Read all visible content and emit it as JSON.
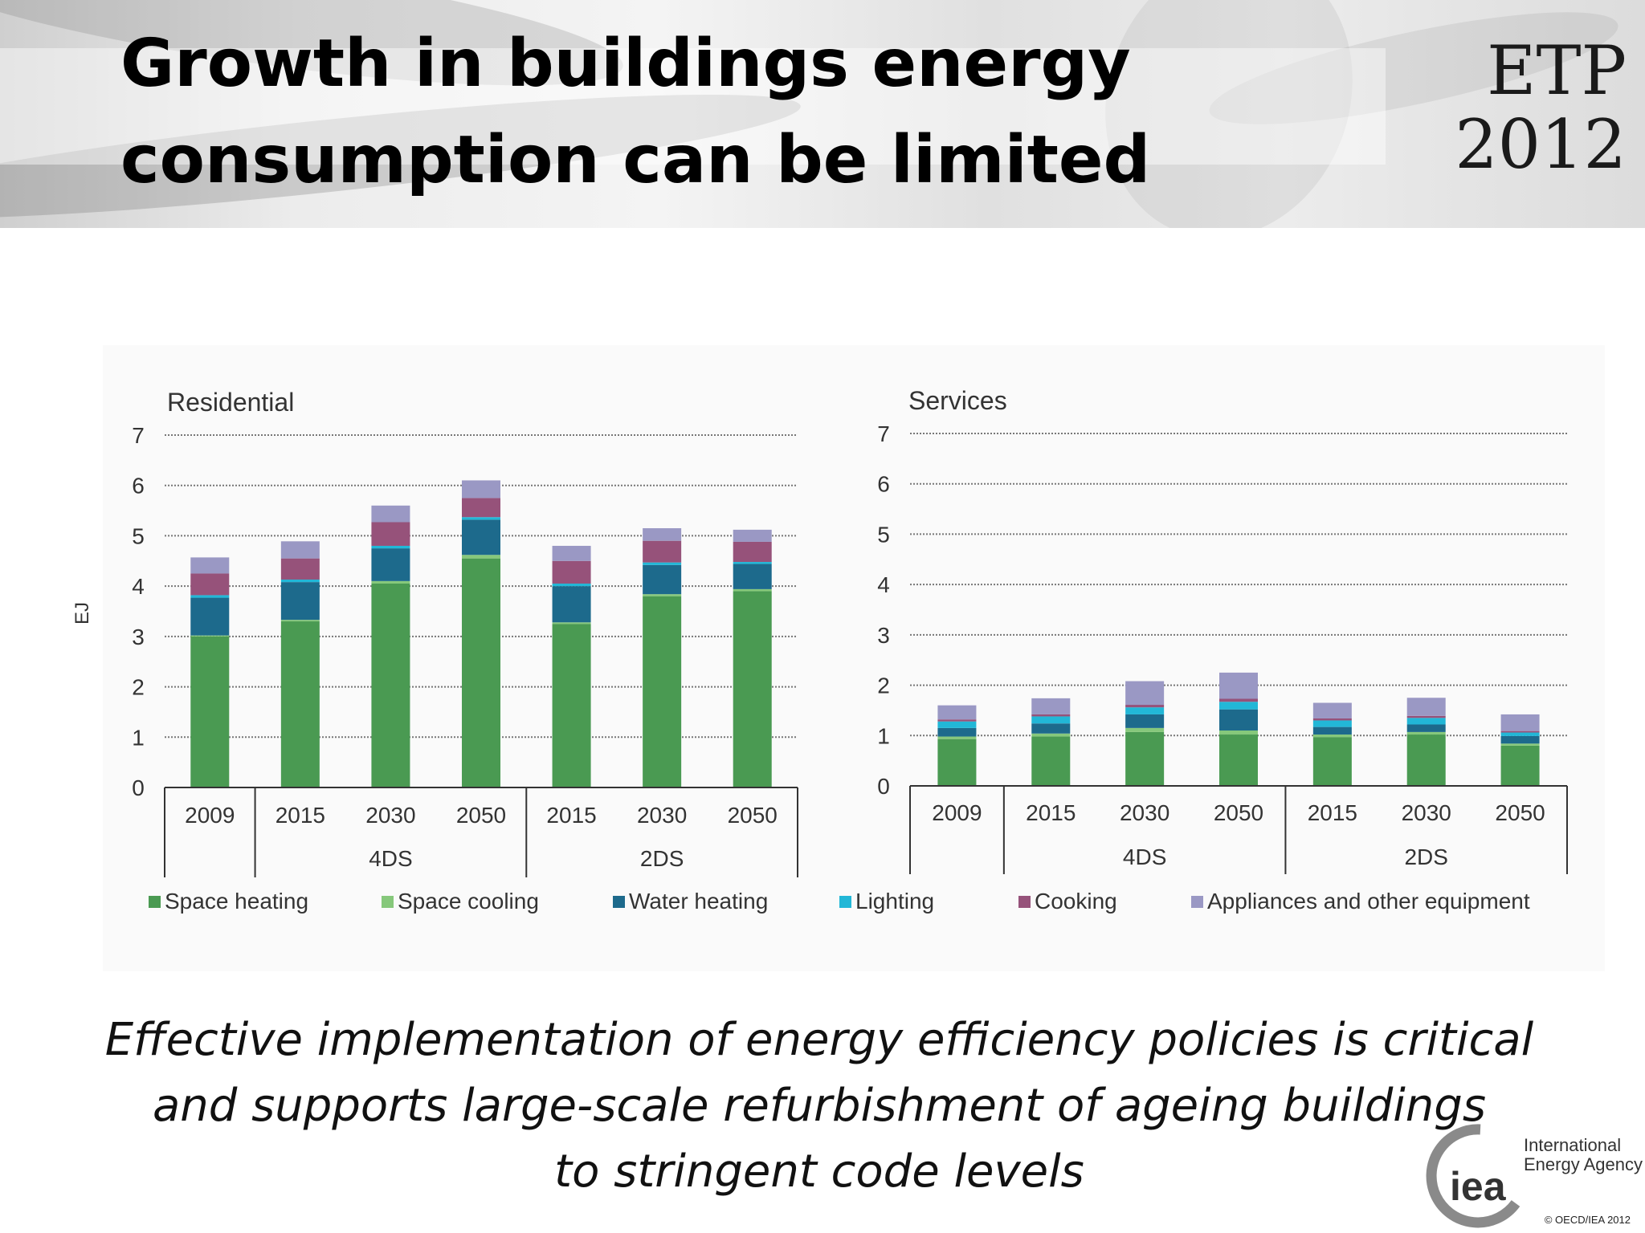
{
  "slide": {
    "title_lines": [
      "Growth in buildings energy",
      "consumption can be limited"
    ],
    "logo_lines": [
      "ETP",
      "2012"
    ],
    "caption_lines": [
      "Effective implementation of energy efficiency policies is critical",
      "and supports large-scale refurbishment of ageing buildings",
      "to stringent code levels"
    ],
    "footer": {
      "org_lines": [
        "International",
        "Energy Agency"
      ],
      "logo_text": "iea",
      "copyright": "© OECD/IEA 2012"
    }
  },
  "colors": {
    "Space heating": "#4a9a52",
    "Space cooling": "#86c87b",
    "Water heating": "#1d6a8c",
    "Lighting": "#22b7d7",
    "Cooking": "#96527a",
    "Appliances and other equipment": "#9a98c4"
  },
  "chart_data": [
    {
      "type": "bar",
      "stacked": true,
      "title": "Residential",
      "ylabel": "EJ",
      "ylim": [
        0,
        7
      ],
      "yticks": [
        0,
        1,
        2,
        3,
        4,
        5,
        6,
        7
      ],
      "grid": true,
      "categories": [
        "2009",
        "2015",
        "2030",
        "2050",
        "2015",
        "2030",
        "2050"
      ],
      "groups": [
        {
          "label": "",
          "categories": [
            "2009"
          ]
        },
        {
          "label": "4DS",
          "categories": [
            "2015",
            "2030",
            "2050"
          ]
        },
        {
          "label": "2DS",
          "categories": [
            "2015",
            "2030",
            "2050"
          ]
        }
      ],
      "series": [
        {
          "name": "Space heating",
          "values": [
            3.0,
            3.3,
            4.05,
            4.55,
            3.25,
            3.8,
            3.9
          ]
        },
        {
          "name": "Space cooling",
          "values": [
            0.02,
            0.03,
            0.05,
            0.07,
            0.03,
            0.04,
            0.04
          ]
        },
        {
          "name": "Water heating",
          "values": [
            0.75,
            0.75,
            0.65,
            0.7,
            0.72,
            0.58,
            0.5
          ]
        },
        {
          "name": "Lighting",
          "values": [
            0.05,
            0.05,
            0.05,
            0.05,
            0.05,
            0.05,
            0.04
          ]
        },
        {
          "name": "Cooking",
          "values": [
            0.43,
            0.42,
            0.47,
            0.38,
            0.45,
            0.43,
            0.4
          ]
        },
        {
          "name": "Appliances and other equipment",
          "values": [
            0.32,
            0.34,
            0.33,
            0.35,
            0.3,
            0.25,
            0.24
          ]
        }
      ]
    },
    {
      "type": "bar",
      "stacked": true,
      "title": "Services",
      "ylabel": "",
      "ylim": [
        0,
        7
      ],
      "yticks": [
        0,
        1,
        2,
        3,
        4,
        5,
        6,
        7
      ],
      "grid": true,
      "categories": [
        "2009",
        "2015",
        "2030",
        "2050",
        "2015",
        "2030",
        "2050"
      ],
      "groups": [
        {
          "label": "",
          "categories": [
            "2009"
          ]
        },
        {
          "label": "4DS",
          "categories": [
            "2015",
            "2030",
            "2050"
          ]
        },
        {
          "label": "2DS",
          "categories": [
            "2015",
            "2030",
            "2050"
          ]
        }
      ],
      "series": [
        {
          "name": "Space heating",
          "values": [
            0.93,
            0.98,
            1.07,
            1.02,
            0.97,
            1.02,
            0.8
          ]
        },
        {
          "name": "Space cooling",
          "values": [
            0.05,
            0.06,
            0.08,
            0.08,
            0.05,
            0.05,
            0.04
          ]
        },
        {
          "name": "Water heating",
          "values": [
            0.17,
            0.2,
            0.27,
            0.42,
            0.15,
            0.15,
            0.15
          ]
        },
        {
          "name": "Lighting",
          "values": [
            0.13,
            0.14,
            0.14,
            0.15,
            0.13,
            0.13,
            0.07
          ]
        },
        {
          "name": "Cooking",
          "values": [
            0.04,
            0.04,
            0.05,
            0.06,
            0.04,
            0.04,
            0.03
          ]
        },
        {
          "name": "Appliances and other equipment",
          "values": [
            0.28,
            0.32,
            0.47,
            0.52,
            0.31,
            0.36,
            0.33
          ]
        }
      ]
    }
  ],
  "legend": {
    "placement": "bottom",
    "items": [
      "Space heating",
      "Space cooling",
      "Water heating",
      "Lighting",
      "Cooking",
      "Appliances and other equipment"
    ]
  }
}
